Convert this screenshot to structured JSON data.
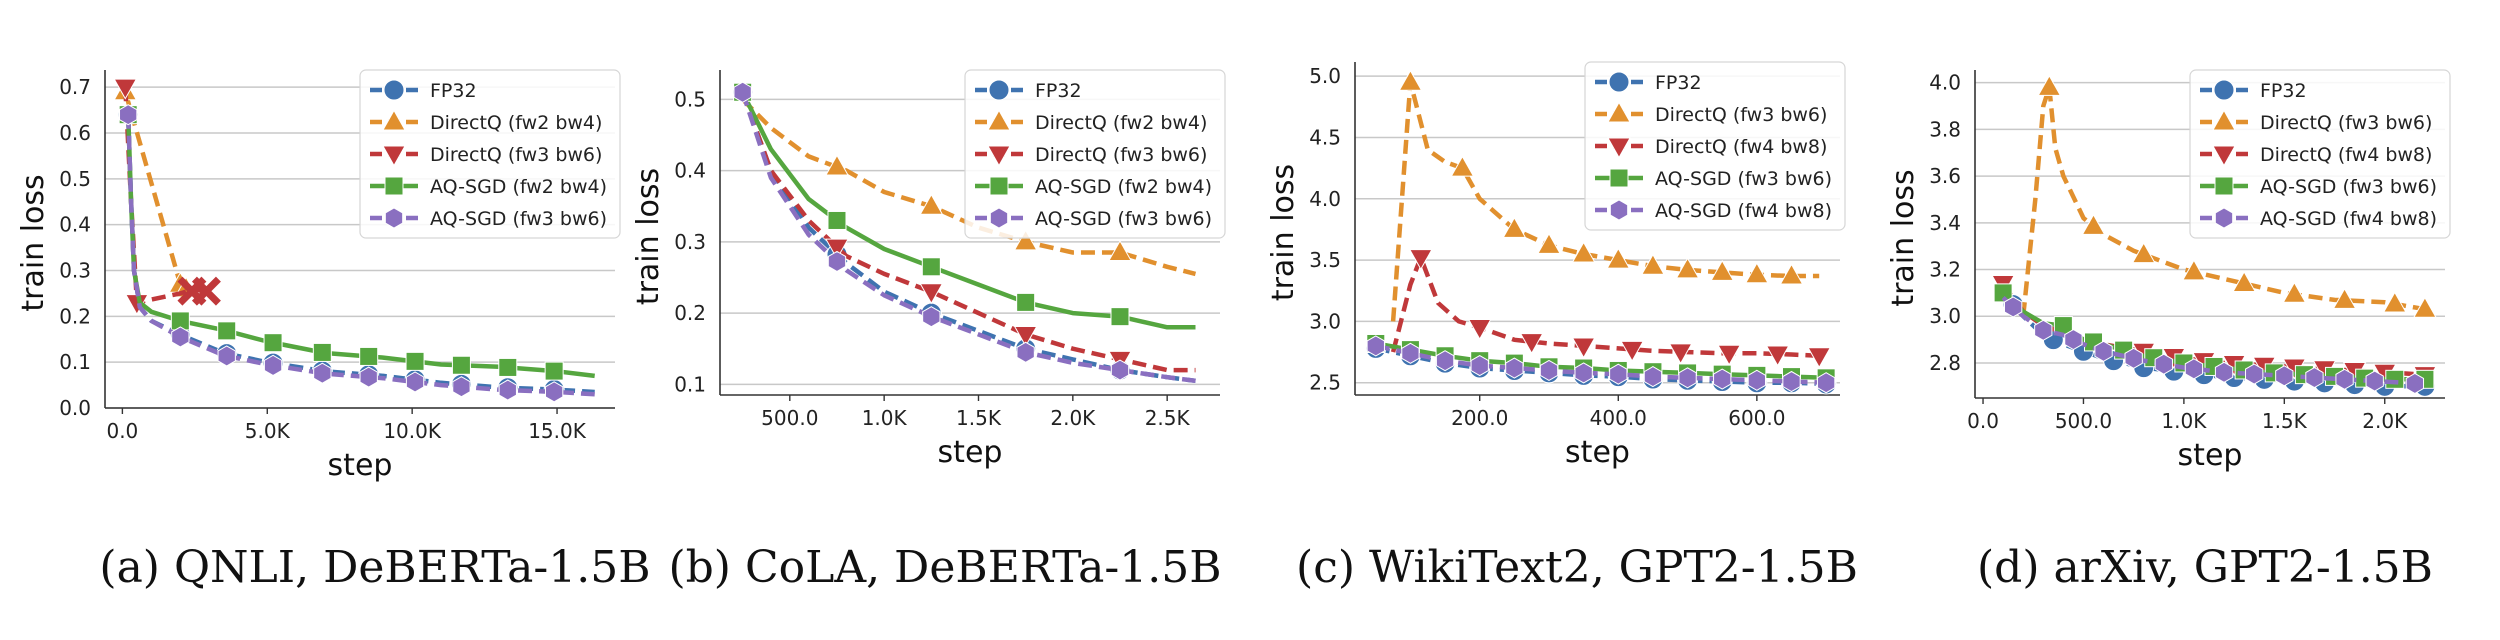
{
  "chart_data": [
    {
      "type": "line",
      "caption": "(a) QNLI, DeBERTa-1.5B",
      "xlabel": "step",
      "ylabel": "train loss",
      "xlim": [
        -600,
        17000
      ],
      "ylim": [
        0.0,
        0.72
      ],
      "xticks": [
        0,
        5000,
        10000,
        15000
      ],
      "xtick_labels": [
        "0.0",
        "5.0K",
        "10.0K",
        "15.0K"
      ],
      "yticks": [
        0.0,
        0.1,
        0.2,
        0.3,
        0.4,
        0.5,
        0.6,
        0.7
      ],
      "ytick_labels": [
        "0.0",
        "0.1",
        "0.2",
        "0.3",
        "0.4",
        "0.5",
        "0.6",
        "0.7"
      ],
      "legend_position": "top-right",
      "series": [
        {
          "name": "FP32",
          "x": [
            200,
            300,
            400,
            600,
            1000,
            2000,
            3500,
            5000,
            7000,
            9000,
            11000,
            13000,
            15000,
            16300
          ],
          "y": [
            0.64,
            0.45,
            0.3,
            0.22,
            0.19,
            0.16,
            0.12,
            0.1,
            0.08,
            0.07,
            0.055,
            0.045,
            0.04,
            0.035
          ],
          "markers_at": [
            200,
            2000,
            3600,
            5200,
            6900,
            8500,
            10100,
            11700,
            13300,
            14900
          ]
        },
        {
          "name": "DirectQ (fw2 bw4)",
          "x": [
            100,
            2000,
            2200
          ],
          "y": [
            0.69,
            0.27,
            0.26
          ],
          "markers_at": [
            100,
            2000,
            2200
          ]
        },
        {
          "name": "DirectQ (fw3 bw6)",
          "x": [
            100,
            300,
            500,
            2000,
            2500,
            3000
          ],
          "y": [
            0.7,
            0.45,
            0.23,
            0.25,
            0.26,
            0.25
          ],
          "markers_at": [
            100,
            500
          ]
        },
        {
          "name": "AQ-SGD (fw2 bw4)",
          "x": [
            200,
            300,
            400,
            600,
            1000,
            2000,
            3500,
            5000,
            7000,
            9000,
            11000,
            13000,
            15000,
            16300
          ],
          "y": [
            0.64,
            0.45,
            0.3,
            0.23,
            0.21,
            0.19,
            0.17,
            0.145,
            0.12,
            0.11,
            0.095,
            0.09,
            0.08,
            0.07
          ],
          "markers_at": [
            200,
            2000,
            3600,
            5200,
            6900,
            8500,
            10100,
            11700,
            13300,
            14900
          ]
        },
        {
          "name": "AQ-SGD (fw3 bw6)",
          "x": [
            200,
            300,
            400,
            600,
            1000,
            2000,
            3500,
            5000,
            7000,
            9000,
            11000,
            13000,
            15000,
            16300
          ],
          "y": [
            0.64,
            0.45,
            0.3,
            0.22,
            0.19,
            0.155,
            0.115,
            0.095,
            0.075,
            0.065,
            0.05,
            0.04,
            0.035,
            0.03
          ],
          "markers_at": [
            200,
            2000,
            3600,
            5200,
            6900,
            8500,
            10100,
            11700,
            13300,
            14900
          ]
        }
      ],
      "extra_markers": [
        {
          "series": "DirectQ (fw3 bw6)",
          "symbol": "x",
          "x": [
            2400,
            2900
          ],
          "y": [
            0.255,
            0.255
          ]
        }
      ]
    },
    {
      "type": "line",
      "caption": "(b) CoLA, DeBERTa-1.5B",
      "xlabel": "step",
      "ylabel": "train loss",
      "xlim": [
        130,
        2780
      ],
      "ylim": [
        0.085,
        0.53
      ],
      "xticks": [
        500,
        1000,
        1500,
        2000,
        2500
      ],
      "xtick_labels": [
        "500.0",
        "1.0K",
        "1.5K",
        "2.0K",
        "2.5K"
      ],
      "yticks": [
        0.1,
        0.2,
        0.3,
        0.4,
        0.5
      ],
      "ytick_labels": [
        "0.1",
        "0.2",
        "0.3",
        "0.4",
        "0.5"
      ],
      "legend_position": "top-right",
      "series": [
        {
          "name": "FP32",
          "x": [
            250,
            400,
            600,
            800,
            1000,
            1250,
            1500,
            1750,
            2000,
            2250,
            2500,
            2650
          ],
          "y": [
            0.51,
            0.4,
            0.32,
            0.27,
            0.23,
            0.2,
            0.175,
            0.15,
            0.135,
            0.12,
            0.11,
            0.105
          ],
          "markers_at": [
            250,
            750,
            1250,
            1750,
            2250
          ]
        },
        {
          "name": "DirectQ (fw2 bw4)",
          "x": [
            250,
            400,
            600,
            800,
            1000,
            1250,
            1500,
            1750,
            2000,
            2250,
            2500,
            2650
          ],
          "y": [
            0.5,
            0.46,
            0.42,
            0.4,
            0.37,
            0.35,
            0.32,
            0.3,
            0.285,
            0.285,
            0.265,
            0.255
          ],
          "markers_at": [
            750,
            1250,
            1750,
            2250
          ]
        },
        {
          "name": "DirectQ (fw3 bw6)",
          "x": [
            250,
            400,
            600,
            800,
            1000,
            1250,
            1500,
            1750,
            2000,
            2250,
            2500,
            2650
          ],
          "y": [
            0.51,
            0.4,
            0.33,
            0.28,
            0.255,
            0.23,
            0.2,
            0.17,
            0.15,
            0.135,
            0.12,
            0.12
          ],
          "markers_at": [
            750,
            1250,
            1750,
            2250
          ]
        },
        {
          "name": "AQ-SGD (fw2 bw4)",
          "x": [
            250,
            400,
            600,
            800,
            1000,
            1250,
            1500,
            1750,
            2000,
            2250,
            2500,
            2650
          ],
          "y": [
            0.51,
            0.43,
            0.36,
            0.32,
            0.29,
            0.265,
            0.24,
            0.215,
            0.2,
            0.195,
            0.18,
            0.18
          ],
          "markers_at": [
            250,
            750,
            1250,
            1750,
            2250
          ]
        },
        {
          "name": "AQ-SGD (fw3 bw6)",
          "x": [
            250,
            400,
            600,
            800,
            1000,
            1250,
            1500,
            1750,
            2000,
            2250,
            2500,
            2650
          ],
          "y": [
            0.51,
            0.39,
            0.31,
            0.26,
            0.225,
            0.195,
            0.17,
            0.145,
            0.13,
            0.12,
            0.11,
            0.105
          ],
          "markers_at": [
            250,
            750,
            1250,
            1750,
            2250
          ]
        }
      ]
    },
    {
      "type": "line",
      "caption": "(c) WikiText2, GPT2-1.5B",
      "xlabel": "step",
      "ylabel": "train loss",
      "xlim": [
        20,
        720
      ],
      "ylim": [
        2.4,
        5.05
      ],
      "xticks": [
        200,
        400,
        600
      ],
      "xtick_labels": [
        "200.0",
        "400.0",
        "600.0"
      ],
      "yticks": [
        2.5,
        3.0,
        3.5,
        4.0,
        4.5,
        5.0
      ],
      "ytick_labels": [
        "2.5",
        "3.0",
        "3.5",
        "4.0",
        "4.5",
        "5.0"
      ],
      "legend_position": "top-right",
      "series": [
        {
          "name": "FP32",
          "x": [
            50,
            100,
            150,
            200,
            250,
            300,
            350,
            400,
            450,
            500,
            550,
            600,
            650,
            700
          ],
          "y": [
            2.78,
            2.72,
            2.66,
            2.62,
            2.6,
            2.58,
            2.56,
            2.55,
            2.53,
            2.52,
            2.51,
            2.5,
            2.5,
            2.49
          ],
          "markers_at": [
            50,
            100,
            150,
            200,
            250,
            300,
            350,
            400,
            450,
            500,
            550,
            600,
            650,
            700
          ]
        },
        {
          "name": "DirectQ (fw3 bw6)",
          "x": [
            75,
            100,
            125,
            150,
            175,
            200,
            250,
            300,
            350,
            400,
            450,
            500,
            550,
            600,
            650,
            690
          ],
          "y": [
            3.0,
            4.95,
            4.4,
            4.3,
            4.25,
            4.0,
            3.75,
            3.62,
            3.55,
            3.5,
            3.45,
            3.42,
            3.4,
            3.38,
            3.37,
            3.37
          ],
          "markers_at": [
            100,
            175,
            250,
            300,
            350,
            400,
            450,
            500,
            550,
            600,
            650
          ]
        },
        {
          "name": "DirectQ (fw4 bw8)",
          "x": [
            75,
            100,
            115,
            140,
            170,
            200,
            250,
            300,
            350,
            400,
            450,
            500,
            550,
            600,
            650,
            690
          ],
          "y": [
            2.75,
            3.3,
            3.52,
            3.15,
            3.0,
            2.95,
            2.85,
            2.82,
            2.8,
            2.78,
            2.76,
            2.75,
            2.74,
            2.74,
            2.73,
            2.72
          ],
          "markers_at": [
            115,
            200,
            275,
            350,
            420,
            490,
            560,
            630,
            690
          ]
        },
        {
          "name": "AQ-SGD (fw3 bw6)",
          "x": [
            50,
            100,
            150,
            200,
            250,
            300,
            350,
            400,
            450,
            500,
            550,
            600,
            650,
            700
          ],
          "y": [
            2.82,
            2.77,
            2.72,
            2.68,
            2.66,
            2.63,
            2.62,
            2.6,
            2.59,
            2.58,
            2.57,
            2.56,
            2.55,
            2.54
          ],
          "markers_at": [
            50,
            100,
            150,
            200,
            250,
            300,
            350,
            400,
            450,
            500,
            550,
            600,
            650,
            700
          ]
        },
        {
          "name": "AQ-SGD (fw4 bw8)",
          "x": [
            50,
            100,
            150,
            200,
            250,
            300,
            350,
            400,
            450,
            500,
            550,
            600,
            650,
            700
          ],
          "y": [
            2.8,
            2.74,
            2.68,
            2.64,
            2.62,
            2.6,
            2.58,
            2.57,
            2.55,
            2.54,
            2.53,
            2.52,
            2.51,
            2.5
          ],
          "markers_at": [
            50,
            100,
            150,
            200,
            250,
            300,
            350,
            400,
            450,
            500,
            550,
            600,
            650,
            700
          ]
        }
      ]
    },
    {
      "type": "line",
      "caption": "(d) arXiv, GPT2-1.5B",
      "xlabel": "step",
      "ylabel": "train loss",
      "xlim": [
        -40,
        2300
      ],
      "ylim": [
        2.65,
        4.02
      ],
      "xticks": [
        0,
        500,
        1000,
        1500,
        2000
      ],
      "xtick_labels": [
        "0.0",
        "500.0",
        "1.0K",
        "1.5K",
        "2.0K"
      ],
      "yticks": [
        2.8,
        3.0,
        3.2,
        3.4,
        3.6,
        3.8,
        4.0
      ],
      "ytick_labels": [
        "2.8",
        "3.0",
        "3.2",
        "3.4",
        "3.6",
        "3.8",
        "4.0"
      ],
      "legend_position": "top-right",
      "series": [
        {
          "name": "FP32",
          "x": [
            100,
            200,
            300,
            400,
            500,
            600,
            800,
            1000,
            1200,
            1400,
            1600,
            1800,
            2000,
            2200
          ],
          "y": [
            3.1,
            3.0,
            2.92,
            2.88,
            2.85,
            2.82,
            2.78,
            2.76,
            2.74,
            2.73,
            2.72,
            2.71,
            2.7,
            2.7
          ],
          "markers_at": [
            150,
            350,
            500,
            650,
            800,
            950,
            1100,
            1250,
            1400,
            1550,
            1700,
            1850,
            2000,
            2200
          ]
        },
        {
          "name": "DirectQ (fw3 bw6)",
          "x": [
            200,
            260,
            300,
            330,
            360,
            400,
            500,
            600,
            750,
            1000,
            1250,
            1500,
            1750,
            2000,
            2200
          ],
          "y": [
            3.0,
            3.5,
            3.9,
            3.98,
            3.72,
            3.6,
            3.42,
            3.35,
            3.28,
            3.2,
            3.15,
            3.1,
            3.07,
            3.06,
            3.03
          ],
          "markers_at": [
            330,
            550,
            800,
            1050,
            1300,
            1550,
            1800,
            2050,
            2200
          ]
        },
        {
          "name": "DirectQ (fw4 bw8)",
          "x": [
            100,
            200,
            300,
            400,
            500,
            600,
            800,
            1000,
            1200,
            1400,
            1600,
            1800,
            2000,
            2200
          ],
          "y": [
            3.14,
            3.02,
            2.96,
            2.93,
            2.9,
            2.88,
            2.85,
            2.82,
            2.8,
            2.79,
            2.78,
            2.77,
            2.76,
            2.75
          ],
          "markers_at": [
            100,
            800,
            950,
            1100,
            1250,
            1400,
            1550,
            1700,
            1850,
            2000,
            2200
          ]
        },
        {
          "name": "AQ-SGD (fw3 bw6)",
          "x": [
            100,
            200,
            300,
            400,
            500,
            600,
            800,
            1000,
            1200,
            1400,
            1600,
            1800,
            2000,
            2200
          ],
          "y": [
            3.1,
            3.02,
            2.97,
            2.96,
            2.9,
            2.88,
            2.83,
            2.8,
            2.78,
            2.76,
            2.75,
            2.74,
            2.73,
            2.73
          ],
          "markers_at": [
            100,
            400,
            550,
            700,
            850,
            1000,
            1150,
            1300,
            1450,
            1600,
            1750,
            1900,
            2050,
            2200
          ]
        },
        {
          "name": "AQ-SGD (fw4 bw8)",
          "x": [
            100,
            200,
            300,
            400,
            500,
            600,
            800,
            1000,
            1200,
            1400,
            1600,
            1800,
            2000,
            2200
          ],
          "y": [
            3.08,
            3.0,
            2.94,
            2.92,
            2.88,
            2.85,
            2.81,
            2.78,
            2.76,
            2.75,
            2.74,
            2.73,
            2.72,
            2.71
          ],
          "markers_at": [
            150,
            300,
            450,
            600,
            750,
            900,
            1050,
            1200,
            1350,
            1500,
            1650,
            1800,
            1950,
            2150
          ]
        }
      ]
    }
  ],
  "style": {
    "series_colors": [
      "#3f73b0",
      "#e1902e",
      "#c0383a",
      "#55a63f",
      "#8a6fc0"
    ],
    "series_markers": [
      "circle",
      "triangle-up",
      "triangle-down",
      "square",
      "hexagon"
    ],
    "series_dash": [
      true,
      true,
      true,
      false,
      true
    ],
    "grid_color": "#c8c8c8",
    "axis_color": "#333333"
  }
}
